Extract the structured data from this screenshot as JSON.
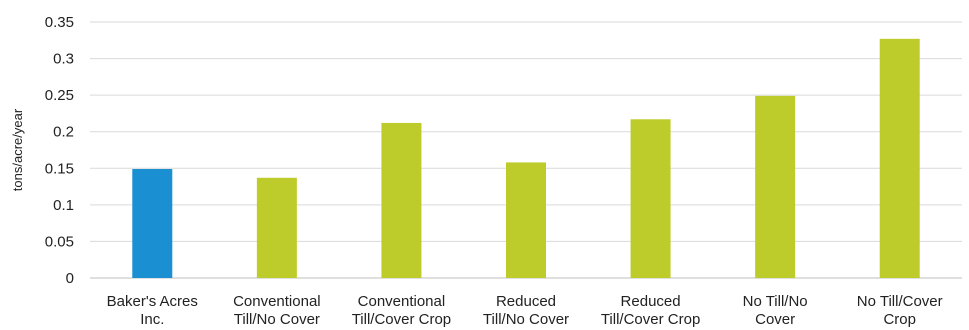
{
  "chart_data": {
    "type": "bar",
    "categories": [
      [
        "Baker's Acres",
        "Inc."
      ],
      [
        "Conventional",
        "Till/No Cover"
      ],
      [
        "Conventional",
        "Till/Cover Crop"
      ],
      [
        "Reduced",
        "Till/No Cover"
      ],
      [
        "Reduced",
        "Till/Cover Crop"
      ],
      [
        "No Till/No",
        "Cover"
      ],
      [
        "No Till/Cover",
        "Crop"
      ]
    ],
    "values": [
      0.149,
      0.137,
      0.212,
      0.158,
      0.217,
      0.249,
      0.327
    ],
    "bar_colors": [
      "#1a8fd1",
      "#bdcc2a",
      "#bdcc2a",
      "#bdcc2a",
      "#bdcc2a",
      "#bdcc2a",
      "#bdcc2a"
    ],
    "ylabel": "tons/acre/year",
    "ylim": [
      0,
      0.35
    ],
    "yticks": [
      "0",
      "0.05",
      "0.1",
      "0.15",
      "0.2",
      "0.25",
      "0.3",
      "0.35"
    ],
    "grid": true,
    "legend": "none"
  }
}
